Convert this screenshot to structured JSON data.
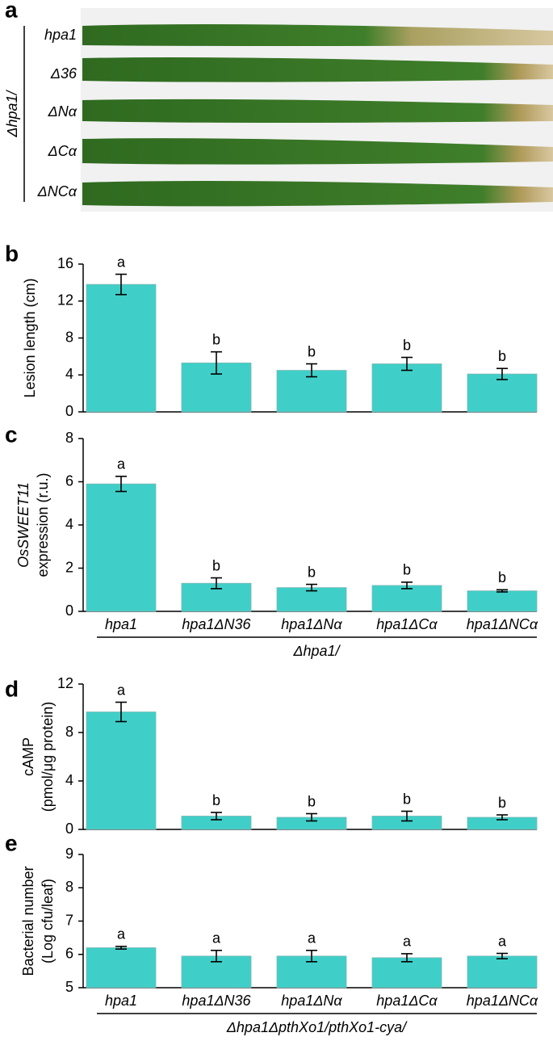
{
  "panel_a": {
    "panel": "a",
    "group_label": "Δhpa1/",
    "leaf_labels": [
      "hpa1",
      "Δ36",
      "ΔNα",
      "ΔCα",
      "ΔNCα"
    ]
  },
  "chart_data": [
    {
      "type": "bar",
      "panel": "b",
      "ylabel": [
        "Lesion length (cm)"
      ],
      "color": "#3fcfc8",
      "ylim": [
        0,
        16
      ],
      "yticks": [
        0,
        4,
        8,
        12,
        16
      ],
      "values": [
        13.8,
        5.3,
        4.5,
        5.2,
        4.1
      ],
      "errors": [
        1.1,
        1.2,
        0.7,
        0.7,
        0.6
      ],
      "significance": [
        "a",
        "b",
        "b",
        "b",
        "b"
      ]
    },
    {
      "type": "bar",
      "panel": "c",
      "ylabel": [
        "OsSWEET11",
        "expression (r.u.)"
      ],
      "color": "#3fcfc8",
      "ylim": [
        0,
        8
      ],
      "yticks": [
        0,
        2,
        4,
        6,
        8
      ],
      "categories": [
        "hpa1",
        "hpa1ΔN36",
        "hpa1ΔNα",
        "hpa1ΔCα",
        "hpa1ΔNCα"
      ],
      "group_label": "Δhpa1/",
      "values": [
        5.9,
        1.3,
        1.1,
        1.2,
        0.95
      ],
      "errors": [
        0.35,
        0.25,
        0.15,
        0.15,
        0.05
      ],
      "significance": [
        "a",
        "b",
        "b",
        "b",
        "b"
      ]
    },
    {
      "type": "bar",
      "panel": "d",
      "ylabel": [
        "cAMP",
        "(pmol/μg protein)"
      ],
      "color": "#3fcfc8",
      "ylim": [
        0,
        12
      ],
      "yticks": [
        0,
        4,
        8,
        12
      ],
      "values": [
        9.7,
        1.1,
        1.0,
        1.1,
        1.0
      ],
      "errors": [
        0.8,
        0.3,
        0.3,
        0.4,
        0.2
      ],
      "significance": [
        "a",
        "b",
        "b",
        "b",
        "b"
      ]
    },
    {
      "type": "bar",
      "panel": "e",
      "ylabel": [
        "Bacterial number",
        "(Log cfu/leaf)"
      ],
      "color": "#3fcfc8",
      "ylim": [
        5,
        9
      ],
      "yticks": [
        5,
        6,
        7,
        8,
        9
      ],
      "categories": [
        "hpa1",
        "hpa1ΔN36",
        "hpa1ΔNα",
        "hpa1ΔCα",
        "hpa1ΔNCα"
      ],
      "group_label": "Δhpa1ΔpthXo1/pthXo1-cya/",
      "values": [
        6.2,
        5.95,
        5.95,
        5.9,
        5.95
      ],
      "errors": [
        0.04,
        0.17,
        0.17,
        0.12,
        0.08
      ],
      "significance": [
        "a",
        "a",
        "a",
        "a",
        "a"
      ]
    }
  ]
}
